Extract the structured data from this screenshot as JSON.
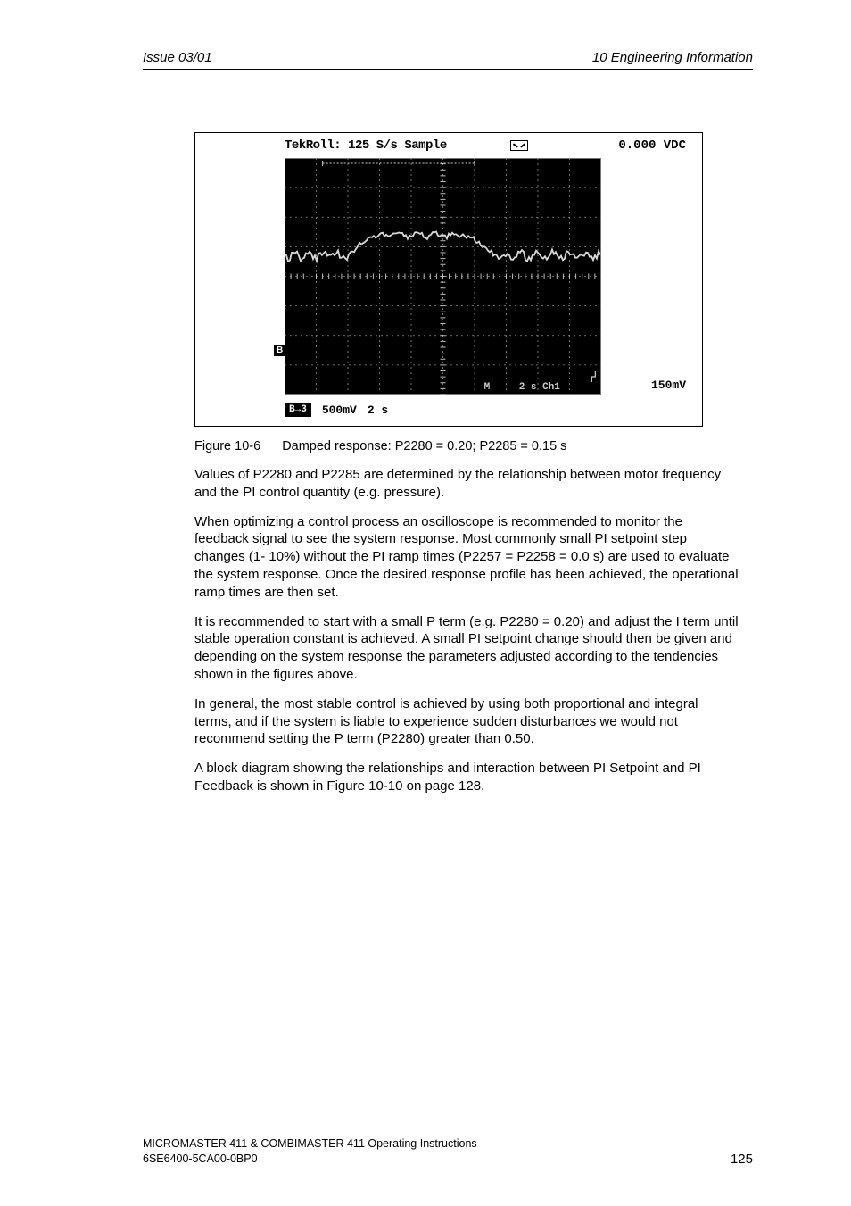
{
  "header": {
    "left": "Issue 03/01",
    "right": "10  Engineering Information"
  },
  "scope": {
    "header_left": "TekRoll: 125 S/s   Sample",
    "header_right": "0.000 VDC",
    "badge": "B→3",
    "footer_scale1": "500mV",
    "footer_scale2": "2 s",
    "footer_right": "150mV",
    "mid_label_m": "M",
    "mid_label_ch": "2 s Ch1",
    "b_arrow": "B→",
    "grid": {
      "cols": 10,
      "rows": 8,
      "major_color": "#8c8c8c",
      "minor_dash": "2,4",
      "center_tick_color": "#bfbfbf"
    },
    "trace": {
      "color": "#d9d9d9",
      "width": 1.8,
      "baseline_row": 3.3,
      "pulse_peak_row": 2.6,
      "pulse_start_col": 2.0,
      "pulse_end_col": 5.8
    }
  },
  "figure_caption": {
    "label": "Figure 10-6",
    "text": "Damped response: P2280 = 0.20; P2285 = 0.15 s"
  },
  "paragraphs": [
    "Values of P2280 and P2285 are determined by the relationship between motor frequency and the PI control quantity (e.g. pressure).",
    "When optimizing a control process an oscilloscope is recommended to monitor the feedback signal to see the system response. Most commonly small PI setpoint step changes (1- 10%) without the PI ramp times (P2257 = P2258 = 0.0 s) are used to evaluate the system response. Once the desired response profile has been achieved, the operational ramp times are then set.",
    "It is recommended to start with a small P term (e.g. P2280 = 0.20) and adjust the I term until stable operation constant is achieved. A small PI setpoint change should then be given and depending on the system response the parameters adjusted according to the tendencies shown in the figures above.",
    "In general, the most stable control is achieved by using both proportional and integral terms, and if the system is liable to experience sudden disturbances we would not recommend setting the P term (P2280) greater than 0.50.",
    "A block diagram showing the relationships and interaction between PI Setpoint and PI Feedback is shown in Figure 10-10 on page 128."
  ],
  "footer": {
    "line1": "MICROMASTER 411 & COMBIMASTER 411     Operating Instructions",
    "line2": "6SE6400-5CA00-0BP0",
    "page": "125"
  }
}
